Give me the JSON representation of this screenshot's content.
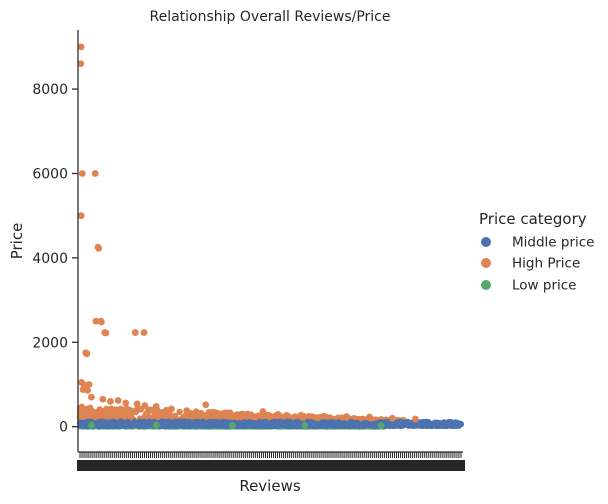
{
  "chart_data": {
    "type": "scatter",
    "title": "Relationship Overall Reviews/Price",
    "xlabel": "Reviews",
    "ylabel": "Price",
    "ylim": [
      -600,
      9400
    ],
    "yticks": [
      0,
      2000,
      4000,
      6000,
      8000
    ],
    "ytick_labels": [
      "0",
      "2000",
      "4000",
      "6000",
      "8000"
    ],
    "xlim": [
      0,
      100
    ],
    "x_axis_note": "categorical axis with very dense overlapping tick labels",
    "grid": false,
    "legend": {
      "title": "Price category",
      "placement": "right",
      "entries": [
        "Middle price",
        "High Price",
        "Low price"
      ]
    },
    "colors": {
      "Middle price": "#4c72b0",
      "High Price": "#dd8452",
      "Low price": "#55a868",
      "axis": "#262626"
    },
    "series": [
      {
        "name": "High Price",
        "points": [
          [
            0.3,
            9000
          ],
          [
            0.2,
            8600
          ],
          [
            0.6,
            6000
          ],
          [
            4.0,
            6000
          ],
          [
            0.3,
            5000
          ],
          [
            4.7,
            4250
          ],
          [
            4.9,
            4230
          ],
          [
            4.2,
            2500
          ],
          [
            5.5,
            2500
          ],
          [
            5.6,
            2480
          ],
          [
            6.5,
            2230
          ],
          [
            6.8,
            2220
          ],
          [
            14.5,
            2230
          ],
          [
            16.8,
            2230
          ],
          [
            1.5,
            1750
          ],
          [
            1.8,
            1730
          ],
          [
            0.4,
            1050
          ],
          [
            1.1,
            990
          ],
          [
            2.4,
            1000
          ],
          [
            0.8,
            880
          ],
          [
            2.0,
            860
          ],
          [
            10.0,
            620
          ],
          [
            12.0,
            560
          ],
          [
            15.0,
            540
          ],
          [
            17.0,
            500
          ],
          [
            20.0,
            480
          ],
          [
            33.0,
            520
          ],
          [
            48.0,
            360
          ],
          [
            24.0,
            420
          ],
          [
            28.0,
            380
          ],
          [
            38.0,
            330
          ],
          [
            44.0,
            300
          ],
          [
            52.0,
            290
          ],
          [
            58.0,
            270
          ],
          [
            64.0,
            250
          ],
          [
            70.0,
            240
          ],
          [
            76.0,
            230
          ],
          [
            82.0,
            200
          ],
          [
            88.0,
            180
          ],
          [
            6.0,
            650
          ],
          [
            8.0,
            600
          ],
          [
            3.0,
            700
          ]
        ],
        "band": {
          "x_from": 0,
          "x_to": 85,
          "y_low": 80,
          "y_high_start": 500,
          "y_high_end": 150
        }
      },
      {
        "name": "Low price",
        "points": [
          [
            3.0,
            40
          ],
          [
            20.0,
            35
          ],
          [
            40.0,
            30
          ],
          [
            59.0,
            30
          ],
          [
            79.0,
            25
          ]
        ],
        "band": {
          "x_from": 0,
          "x_to": 80,
          "y_low": 5,
          "y_high_start": 60,
          "y_high_end": 40
        }
      },
      {
        "name": "Middle price",
        "points": [
          [
            50.0,
            80
          ],
          [
            90.0,
            90
          ],
          [
            99.0,
            80
          ]
        ],
        "band": {
          "x_from": 0,
          "x_to": 100,
          "y_low": 20,
          "y_high_start": 120,
          "y_high_end": 110
        }
      }
    ]
  }
}
